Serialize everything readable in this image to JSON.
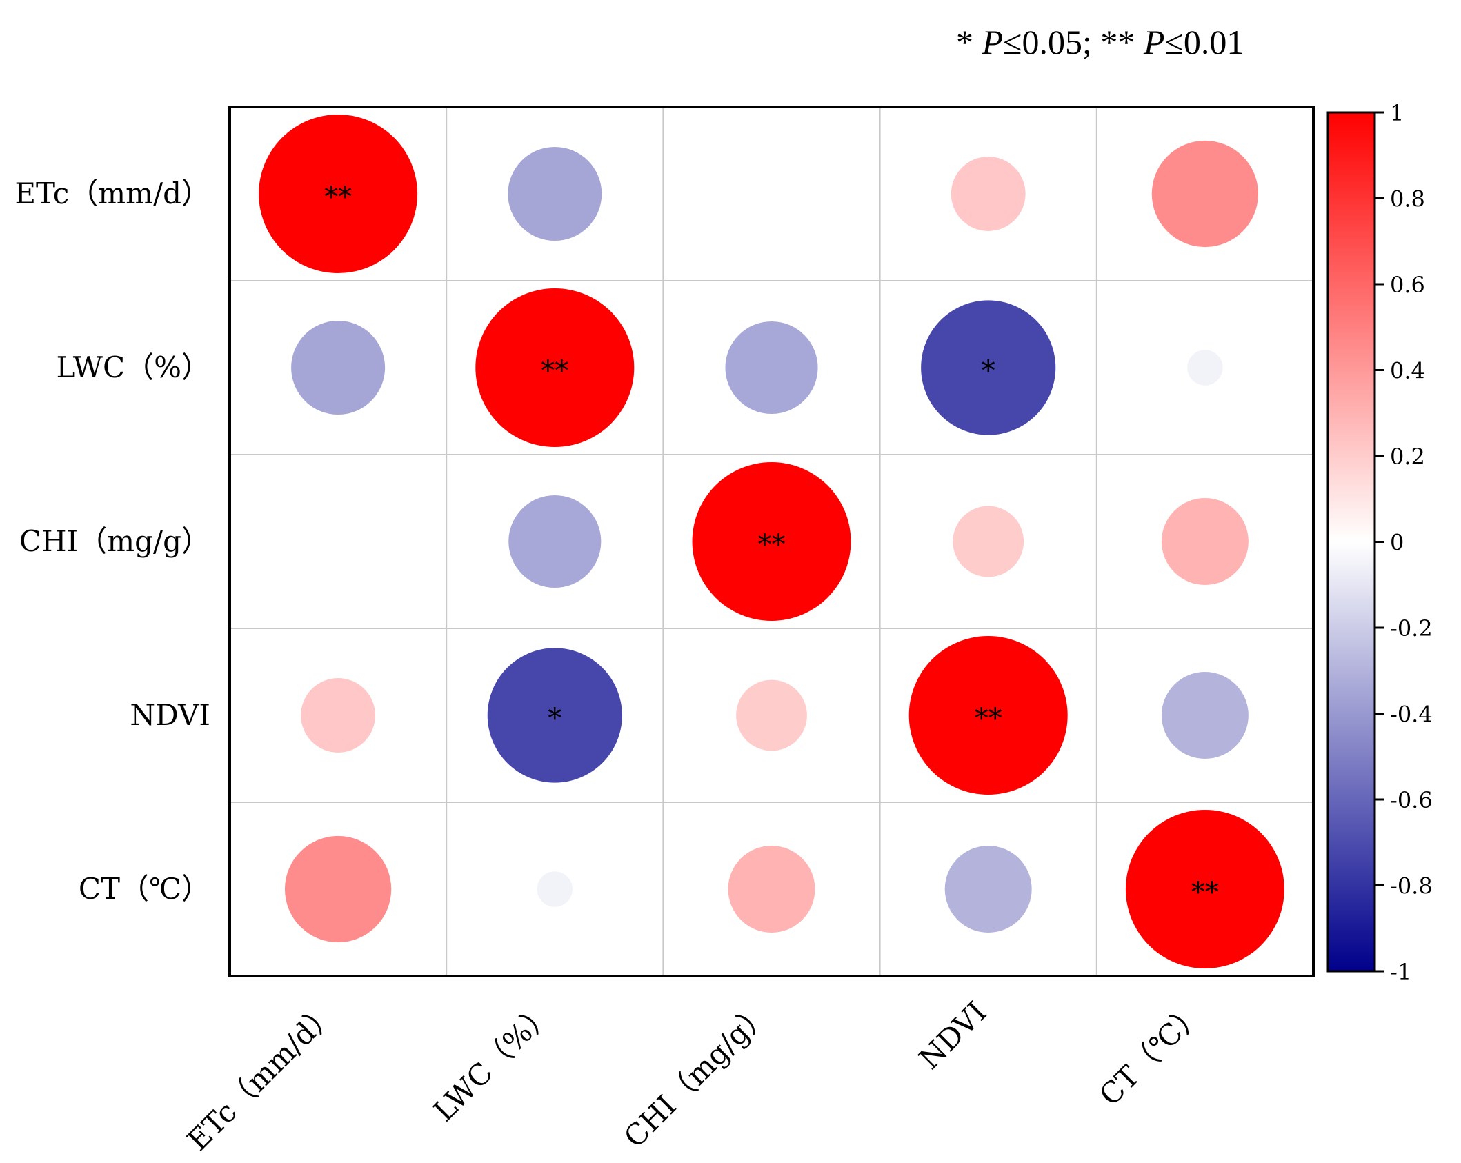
{
  "significance_legend": {
    "part1_star": "* ",
    "part1_p": "P",
    "part1_rest": "≤0.05; ",
    "part2_star": "** ",
    "part2_p": "P",
    "part2_rest": "≤0.01"
  },
  "chart_data": {
    "type": "heatmap",
    "title": "",
    "variables": [
      "ETc（mm/d）",
      "LWC（%）",
      "CHI（mg/g）",
      "NDVI",
      "CT（℃）"
    ],
    "x_tick_labels": [
      "ETc（mm/d）",
      "LWC（%）",
      "CHI（mg/g）",
      "NDVI",
      "CT（℃）"
    ],
    "y_tick_labels": [
      "ETc（mm/d）",
      "LWC（%）",
      "CHI（mg/g）",
      "NDVI",
      "CT（℃）"
    ],
    "matrix": [
      [
        1.0,
        -0.35,
        0.0,
        0.22,
        0.45
      ],
      [
        -0.35,
        1.0,
        -0.34,
        -0.72,
        -0.05
      ],
      [
        0.0,
        -0.34,
        1.0,
        0.2,
        0.3
      ],
      [
        0.22,
        -0.72,
        0.2,
        1.0,
        -0.3
      ],
      [
        0.45,
        -0.05,
        0.3,
        -0.3,
        1.0
      ]
    ],
    "significance": [
      [
        "**",
        "",
        "",
        "",
        ""
      ],
      [
        "",
        "**",
        "",
        "*",
        ""
      ],
      [
        "",
        "",
        "**",
        "",
        ""
      ],
      [
        "",
        "*",
        "",
        "**",
        ""
      ],
      [
        "",
        "",
        "",
        "",
        "**"
      ]
    ],
    "colorbar": {
      "range": [
        -1,
        1
      ],
      "ticks": [
        1,
        0.8,
        0.6,
        0.4,
        0.2,
        0,
        -0.2,
        -0.4,
        -0.6,
        -0.8,
        -1
      ],
      "tick_labels": [
        "1",
        "0.8",
        "0.6",
        "0.4",
        "0.2",
        "0",
        "-0.2",
        "-0.4",
        "-0.6",
        "-0.8",
        "-1"
      ],
      "colors": {
        "negative": "#00008b",
        "zero": "#ffffff",
        "positive": "#ff0000"
      }
    },
    "grid": true
  }
}
